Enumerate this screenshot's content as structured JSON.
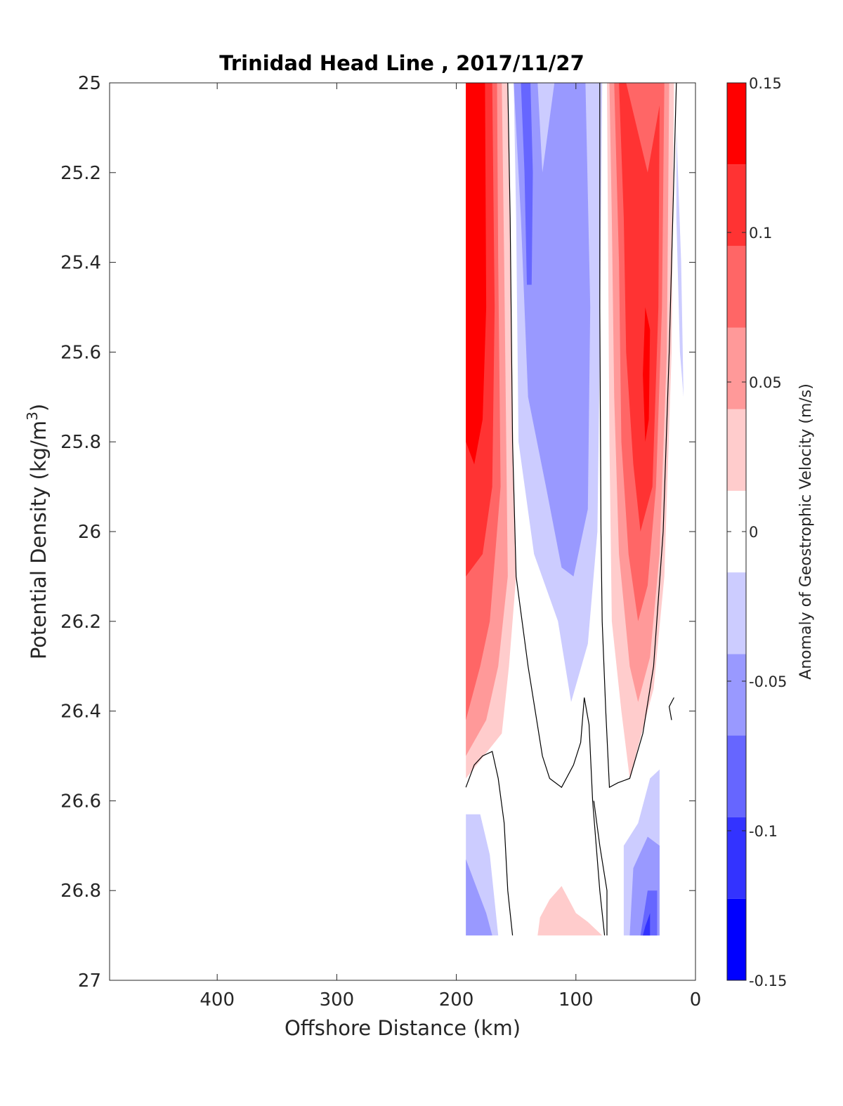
{
  "chart_data": {
    "type": "contour",
    "title": "Trinidad Head Line , 2017/11/27",
    "xlabel": "Offshore Distance (km)",
    "ylabel_main": "Potential Density (kg/m",
    "ylabel_sup": "3",
    "ylabel_close": ")",
    "xlim": [
      490,
      0
    ],
    "ylim": [
      25,
      27
    ],
    "x_reversed": true,
    "y_reversed": true,
    "x_ticks": [
      "400",
      "300",
      "200",
      "100",
      "0"
    ],
    "y_ticks": [
      "25",
      "25.2",
      "25.4",
      "25.6",
      "25.8",
      "26",
      "26.2",
      "26.4",
      "26.6",
      "26.8",
      "27"
    ],
    "colorbar": {
      "label": "Anomaly of Geostrophic Velocity (m/s)",
      "range": [
        -0.15,
        0.15
      ],
      "ticks": [
        "0.15",
        "0.1",
        "0.05",
        "0",
        "-0.05",
        "-0.1",
        "-0.15"
      ],
      "level_colors": [
        "#0000ff",
        "#3333ff",
        "#6666ff",
        "#9999ff",
        "#ccccff",
        "#ffffff",
        "#ffcccc",
        "#ff9999",
        "#ff6666",
        "#ff3333",
        "#ff0000"
      ]
    },
    "fields": [
      {
        "name": "offshore_positive_jet",
        "x_range": [
          192,
          152
        ],
        "sign": "positive",
        "peak_level": 0.15,
        "depth_range": [
          25.0,
          26.55
        ]
      },
      {
        "name": "central_negative_jet",
        "x_range": [
          152,
          78
        ],
        "sign": "negative",
        "peak_level": -0.1,
        "depth_range": [
          25.0,
          26.37
        ]
      },
      {
        "name": "nearshore_positive_jet",
        "x_range": [
          74,
          20
        ],
        "sign": "positive",
        "peak_level": 0.15,
        "depth_range": [
          25.0,
          26.55
        ]
      },
      {
        "name": "deep_offshore_negative",
        "x_range": [
          192,
          160
        ],
        "sign": "negative",
        "peak_level": -0.075,
        "depth_range": [
          26.63,
          26.9
        ]
      },
      {
        "name": "deep_central_positive",
        "x_range": [
          132,
          78
        ],
        "sign": "positive",
        "peak_level": 0.025,
        "depth_range": [
          26.8,
          26.9
        ]
      },
      {
        "name": "deep_nearshore_negative",
        "x_range": [
          60,
          30
        ],
        "sign": "negative",
        "peak_level": -0.125,
        "depth_range": [
          26.53,
          26.9
        ]
      }
    ]
  }
}
